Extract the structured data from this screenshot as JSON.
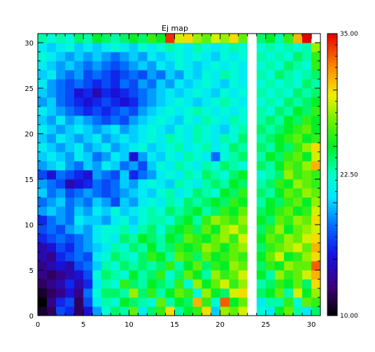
{
  "chart_data": {
    "type": "heatmap",
    "title": "Ej map",
    "xlabel": "",
    "ylabel": "",
    "xlim": [
      0,
      31
    ],
    "ylim": [
      0,
      31
    ],
    "x_ticks": [
      0,
      5,
      10,
      15,
      20,
      25,
      30
    ],
    "y_ticks": [
      0,
      5,
      10,
      15,
      20,
      25,
      30
    ],
    "grid": false,
    "colorbar": {
      "min": 10.0,
      "max": 35.0,
      "tick_labels": [
        "10.00",
        "22.50",
        "35.00"
      ],
      "colormap": "rainbow (black-purple-blue-cyan-green-yellow-orange-red)"
    },
    "nan_columns": [
      23
    ],
    "nan_cells": [
      [
        30,
        30
      ]
    ],
    "values_row_note": "rows listed from y=0 (bottom) to y=30 (top); each row has x=0..30",
    "values": [
      [
        11,
        12,
        17,
        16,
        12,
        15,
        19,
        22,
        24,
        23,
        27,
        21,
        24,
        26,
        30,
        23,
        25,
        26,
        30,
        20,
        28,
        27,
        29,
        null,
        22,
        21,
        25,
        27,
        23,
        21,
        24
      ],
      [
        10,
        13,
        16,
        17,
        12,
        17,
        21,
        23,
        22,
        25,
        24,
        23,
        22,
        27,
        23,
        25,
        24,
        31,
        26,
        22,
        33,
        25,
        27,
        null,
        21,
        23,
        23,
        26,
        22,
        27,
        26
      ],
      [
        11,
        12,
        13,
        15,
        13,
        18,
        22,
        24,
        24,
        23,
        28,
        24,
        26,
        23,
        25,
        27,
        26,
        22,
        28,
        25,
        24,
        29,
        30,
        null,
        24,
        25,
        27,
        23,
        29,
        25,
        28
      ],
      [
        12,
        13,
        14,
        16,
        14,
        16,
        21,
        23,
        22,
        26,
        24,
        23,
        25,
        24,
        23,
        26,
        22,
        28,
        25,
        27,
        29,
        26,
        28,
        null,
        23,
        24,
        26,
        25,
        27,
        24,
        30
      ],
      [
        13,
        12,
        13,
        14,
        15,
        17,
        22,
        24,
        23,
        22,
        25,
        23,
        24,
        26,
        22,
        24,
        27,
        25,
        23,
        28,
        26,
        27,
        29,
        null,
        25,
        23,
        28,
        26,
        27,
        29,
        31
      ],
      [
        13,
        14,
        15,
        14,
        17,
        18,
        20,
        23,
        22,
        24,
        23,
        24,
        23,
        24,
        26,
        23,
        25,
        27,
        24,
        26,
        25,
        28,
        27,
        null,
        24,
        26,
        25,
        28,
        27,
        27,
        33
      ],
      [
        14,
        13,
        16,
        17,
        18,
        17,
        21,
        22,
        24,
        23,
        22,
        24,
        26,
        25,
        23,
        27,
        26,
        24,
        27,
        25,
        26,
        27,
        26,
        null,
        25,
        27,
        29,
        25,
        26,
        28,
        30
      ],
      [
        14,
        15,
        17,
        16,
        18,
        19,
        20,
        21,
        23,
        22,
        24,
        23,
        25,
        23,
        24,
        26,
        25,
        26,
        28,
        27,
        25,
        27,
        28,
        null,
        24,
        26,
        27,
        28,
        29,
        27,
        31
      ],
      [
        16,
        17,
        18,
        17,
        18,
        19,
        21,
        22,
        21,
        24,
        23,
        25,
        24,
        23,
        25,
        24,
        27,
        26,
        25,
        27,
        28,
        26,
        29,
        null,
        25,
        27,
        26,
        28,
        27,
        29,
        30
      ],
      [
        17,
        18,
        17,
        19,
        20,
        19,
        21,
        22,
        22,
        23,
        21,
        23,
        24,
        22,
        24,
        25,
        26,
        24,
        27,
        25,
        28,
        29,
        27,
        null,
        24,
        26,
        28,
        25,
        27,
        28,
        29
      ],
      [
        16,
        18,
        19,
        18,
        21,
        20,
        20,
        19,
        21,
        22,
        20,
        22,
        23,
        23,
        22,
        24,
        25,
        23,
        26,
        28,
        27,
        26,
        28,
        null,
        25,
        24,
        27,
        26,
        28,
        27,
        30
      ],
      [
        19,
        20,
        19,
        18,
        20,
        19,
        21,
        20,
        22,
        20,
        21,
        22,
        23,
        22,
        24,
        23,
        24,
        25,
        23,
        24,
        26,
        25,
        27,
        null,
        24,
        25,
        26,
        27,
        25,
        26,
        29
      ],
      [
        18,
        19,
        20,
        18,
        19,
        18,
        20,
        19,
        17,
        20,
        19,
        21,
        22,
        21,
        23,
        22,
        24,
        23,
        24,
        25,
        24,
        26,
        25,
        null,
        23,
        25,
        24,
        26,
        27,
        25,
        28
      ],
      [
        20,
        18,
        19,
        17,
        18,
        19,
        18,
        17,
        18,
        19,
        20,
        21,
        20,
        22,
        23,
        21,
        22,
        24,
        23,
        22,
        25,
        24,
        26,
        null,
        24,
        23,
        25,
        27,
        26,
        28,
        27
      ],
      [
        19,
        18,
        17,
        14,
        15,
        16,
        18,
        17,
        18,
        20,
        19,
        21,
        22,
        21,
        20,
        23,
        22,
        21,
        23,
        24,
        23,
        25,
        24,
        null,
        23,
        24,
        26,
        25,
        28,
        27,
        26
      ],
      [
        17,
        15,
        18,
        17,
        16,
        15,
        19,
        18,
        17,
        20,
        16,
        18,
        19,
        21,
        22,
        21,
        23,
        22,
        24,
        23,
        22,
        24,
        25,
        null,
        22,
        23,
        24,
        28,
        26,
        27,
        26
      ],
      [
        19,
        20,
        21,
        19,
        18,
        20,
        19,
        21,
        20,
        18,
        19,
        17,
        20,
        22,
        21,
        23,
        22,
        21,
        23,
        22,
        24,
        23,
        22,
        null,
        24,
        23,
        25,
        27,
        26,
        28,
        31
      ],
      [
        20,
        21,
        20,
        19,
        21,
        20,
        18,
        19,
        21,
        20,
        15,
        19,
        21,
        20,
        22,
        21,
        23,
        22,
        21,
        18,
        22,
        23,
        24,
        null,
        23,
        25,
        24,
        26,
        27,
        25,
        29
      ],
      [
        21,
        20,
        19,
        20,
        21,
        19,
        20,
        21,
        19,
        20,
        21,
        22,
        20,
        21,
        22,
        23,
        21,
        22,
        23,
        21,
        22,
        24,
        23,
        null,
        24,
        23,
        25,
        24,
        26,
        28,
        30
      ],
      [
        20,
        19,
        21,
        20,
        19,
        20,
        21,
        19,
        20,
        21,
        20,
        21,
        22,
        21,
        23,
        22,
        21,
        23,
        22,
        21,
        23,
        22,
        24,
        null,
        23,
        24,
        25,
        26,
        27,
        25,
        26
      ],
      [
        21,
        20,
        19,
        20,
        21,
        20,
        19,
        20,
        21,
        19,
        20,
        21,
        22,
        21,
        20,
        22,
        21,
        23,
        22,
        21,
        20,
        22,
        23,
        null,
        24,
        23,
        24,
        25,
        26,
        27,
        25
      ],
      [
        20,
        19,
        21,
        19,
        20,
        19,
        18,
        17,
        18,
        17,
        19,
        20,
        21,
        22,
        21,
        20,
        22,
        21,
        23,
        22,
        21,
        23,
        22,
        null,
        23,
        24,
        23,
        25,
        24,
        26,
        25
      ],
      [
        21,
        20,
        19,
        18,
        17,
        16,
        17,
        16,
        17,
        18,
        17,
        19,
        20,
        21,
        22,
        21,
        22,
        23,
        22,
        21,
        22,
        21,
        22,
        null,
        23,
        22,
        24,
        23,
        25,
        24,
        26
      ],
      [
        19,
        20,
        18,
        17,
        16,
        15,
        16,
        17,
        16,
        15,
        16,
        18,
        19,
        20,
        21,
        22,
        21,
        20,
        21,
        22,
        23,
        22,
        21,
        null,
        22,
        23,
        22,
        24,
        23,
        24,
        25
      ],
      [
        20,
        19,
        18,
        17,
        15,
        16,
        14,
        16,
        15,
        16,
        17,
        18,
        19,
        20,
        21,
        20,
        21,
        22,
        21,
        20,
        22,
        21,
        22,
        null,
        23,
        22,
        23,
        22,
        24,
        23,
        24
      ],
      [
        21,
        19,
        18,
        17,
        18,
        17,
        16,
        17,
        16,
        18,
        17,
        19,
        18,
        20,
        19,
        21,
        20,
        21,
        22,
        21,
        20,
        22,
        21,
        null,
        22,
        23,
        22,
        23,
        22,
        24,
        23
      ],
      [
        20,
        21,
        19,
        18,
        19,
        17,
        18,
        17,
        16,
        17,
        18,
        17,
        19,
        18,
        20,
        19,
        21,
        20,
        22,
        21,
        23,
        22,
        21,
        null,
        23,
        22,
        24,
        23,
        22,
        23,
        24
      ],
      [
        21,
        20,
        19,
        20,
        19,
        18,
        19,
        18,
        17,
        18,
        19,
        20,
        19,
        21,
        20,
        22,
        21,
        20,
        21,
        22,
        21,
        22,
        21,
        null,
        22,
        23,
        22,
        24,
        23,
        22,
        26
      ],
      [
        22,
        21,
        20,
        19,
        20,
        19,
        20,
        19,
        18,
        19,
        20,
        19,
        21,
        20,
        21,
        22,
        21,
        22,
        21,
        20,
        22,
        21,
        22,
        null,
        23,
        22,
        23,
        22,
        24,
        23,
        26
      ],
      [
        21,
        20,
        21,
        22,
        20,
        21,
        20,
        21,
        22,
        21,
        20,
        22,
        21,
        22,
        23,
        22,
        21,
        23,
        22,
        21,
        22,
        23,
        22,
        null,
        22,
        23,
        22,
        23,
        22,
        23,
        28
      ],
      [
        23,
        22,
        23,
        22,
        24,
        23,
        25,
        24,
        23,
        24,
        25,
        24,
        26,
        25,
        34,
        29,
        30,
        28,
        27,
        29,
        28,
        30,
        27,
        null,
        24,
        25,
        23,
        26,
        31,
        35,
        null
      ]
    ]
  }
}
